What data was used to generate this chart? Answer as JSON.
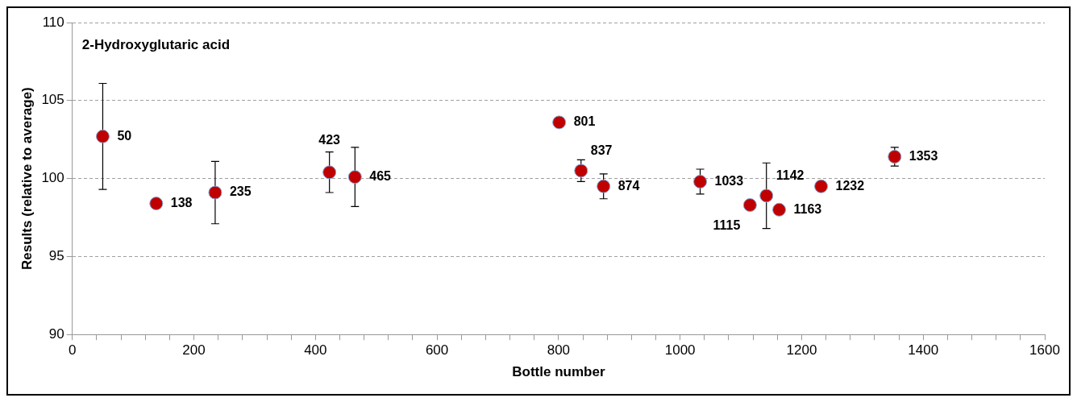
{
  "chart_data": {
    "type": "scatter",
    "title": "2-Hydroxyglutaric acid",
    "xlabel": "Bottle number",
    "ylabel": "Results (relative to average)",
    "x": [
      50,
      138,
      235,
      423,
      465,
      801,
      837,
      874,
      1033,
      1115,
      1142,
      1163,
      1232,
      1353
    ],
    "values": [
      102.7,
      98.4,
      99.1,
      100.4,
      100.1,
      103.6,
      100.5,
      99.5,
      99.8,
      98.3,
      98.9,
      98.0,
      99.5,
      101.4
    ],
    "errors": [
      3.4,
      null,
      2.0,
      1.3,
      1.9,
      null,
      0.7,
      0.8,
      0.8,
      null,
      2.1,
      null,
      null,
      0.6
    ],
    "color": "#c00000",
    "marker": "circle",
    "grid": "y",
    "legend": false,
    "xlim": [
      0,
      1600
    ],
    "ylim": [
      90,
      110
    ],
    "xticks": [
      0,
      {
        "value": 40,
        "label": null
      },
      {
        "value": 80,
        "label": null
      },
      {
        "value": 120,
        "label": null
      },
      {
        "value": 160,
        "label": null
      },
      200,
      {
        "value": 240,
        "label": null
      },
      {
        "value": 280,
        "label": null
      },
      {
        "value": 320,
        "label": null
      },
      {
        "value": 360,
        "label": null
      },
      400,
      {
        "value": 440,
        "label": null
      },
      {
        "value": 480,
        "label": null
      },
      {
        "value": 520,
        "label": null
      },
      {
        "value": 560,
        "label": null
      },
      600,
      {
        "value": 640,
        "label": null
      },
      {
        "value": 680,
        "label": null
      },
      {
        "value": 720,
        "label": null
      },
      {
        "value": 760,
        "label": null
      },
      800,
      {
        "value": 840,
        "label": null
      },
      {
        "value": 880,
        "label": null
      },
      {
        "value": 920,
        "label": null
      },
      {
        "value": 960,
        "label": null
      },
      1000,
      {
        "value": 1040,
        "label": null
      },
      {
        "value": 1080,
        "label": null
      },
      {
        "value": 1120,
        "label": null
      },
      {
        "value": 1160,
        "label": null
      },
      1200,
      {
        "value": 1240,
        "label": null
      },
      {
        "value": 1280,
        "label": null
      },
      {
        "value": 1320,
        "label": null
      },
      {
        "value": 1360,
        "label": null
      },
      1400,
      {
        "value": 1440,
        "label": null
      },
      {
        "value": 1480,
        "label": null
      },
      {
        "value": 1520,
        "label": null
      },
      {
        "value": 1560,
        "label": null
      },
      1600
    ],
    "yticks": [
      90,
      95,
      100,
      105,
      110
    ],
    "annotations": [
      {
        "text": "50",
        "x": 50,
        "y": 102.7
      },
      {
        "text": "138",
        "x": 138,
        "y": 98.4
      },
      {
        "text": "235",
        "x": 235,
        "y": 99.1
      },
      {
        "text": "423",
        "x": 423,
        "y": 100.4
      },
      {
        "text": "465",
        "x": 465,
        "y": 100.1
      },
      {
        "text": "801",
        "x": 801,
        "y": 103.6
      },
      {
        "text": "837",
        "x": 837,
        "y": 100.5
      },
      {
        "text": "874",
        "x": 874,
        "y": 99.5
      },
      {
        "text": "1033",
        "x": 1033,
        "y": 99.8
      },
      {
        "text": "1115",
        "x": 1115,
        "y": 98.3
      },
      {
        "text": "1142",
        "x": 1142,
        "y": 98.9
      },
      {
        "text": "1163",
        "x": 1163,
        "y": 98.0
      },
      {
        "text": "1232",
        "x": 1232,
        "y": 99.5
      },
      {
        "text": "1353",
        "x": 1353,
        "y": 101.4
      }
    ]
  }
}
